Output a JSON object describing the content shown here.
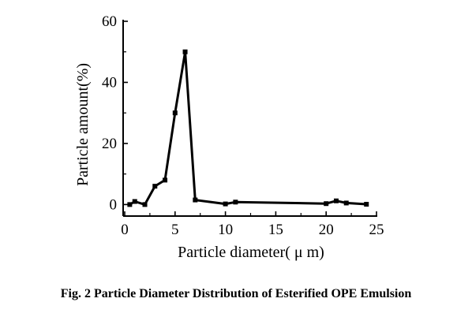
{
  "chart_data": {
    "type": "line",
    "xlabel": "Particle diameter( μ m)",
    "ylabel": "Particle amount(%)",
    "xlim": [
      0,
      25
    ],
    "ylim": [
      -3,
      60
    ],
    "x_ticks": [
      0,
      5,
      10,
      15,
      20,
      25
    ],
    "y_ticks": [
      0,
      20,
      40,
      60
    ],
    "x_tick_labels": [
      "0",
      "5",
      "10",
      "15",
      "20",
      "25"
    ],
    "y_tick_labels": [
      "0",
      "20",
      "40",
      "60"
    ],
    "grid": false,
    "legend": "none",
    "series": [
      {
        "x": [
          0.5,
          1,
          2,
          3,
          4,
          5,
          6,
          7,
          10,
          11,
          20,
          21,
          22,
          24
        ],
        "y": [
          0,
          1,
          0,
          6,
          8,
          30,
          50,
          1.5,
          0.2,
          0.8,
          0.3,
          1.2,
          0.5,
          0.1
        ]
      }
    ]
  },
  "caption": "Fig. 2    Particle Diameter Distribution of Esterified OPE Emulsion"
}
